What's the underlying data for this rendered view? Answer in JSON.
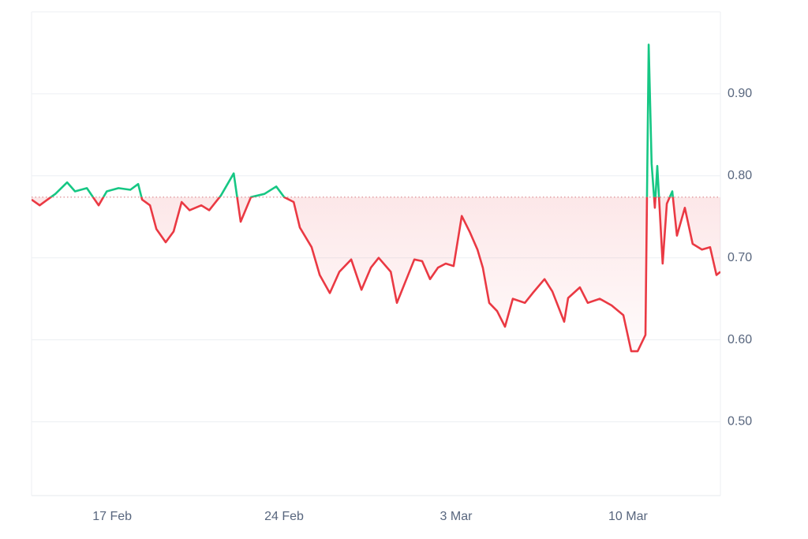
{
  "chart_data": {
    "type": "line",
    "x": [
      -3.28,
      -2.95,
      -2.63,
      -2.31,
      -1.83,
      -1.51,
      -1.03,
      -0.55,
      -0.22,
      0.26,
      0.74,
      1.06,
      1.22,
      1.54,
      1.8,
      2.18,
      2.5,
      2.83,
      3.15,
      3.63,
      3.95,
      4.43,
      4.95,
      5.23,
      5.65,
      6.2,
      6.68,
      7.0,
      7.39,
      7.64,
      8.12,
      8.45,
      8.86,
      9.25,
      9.73,
      10.15,
      10.53,
      10.85,
      11.34,
      11.59,
      11.98,
      12.3,
      12.62,
      12.94,
      13.26,
      13.58,
      13.9,
      14.23,
      14.55,
      14.87,
      15.09,
      15.35,
      15.67,
      15.99,
      16.31,
      16.8,
      17.12,
      17.6,
      17.92,
      18.4,
      18.56,
      19.04,
      19.36,
      19.85,
      20.33,
      20.81,
      21.13,
      21.39,
      21.71,
      21.84,
      21.96,
      22.09,
      22.19,
      22.41,
      22.58,
      22.8,
      22.99,
      23.31,
      23.63,
      24.01,
      24.34,
      24.6,
      24.76
    ],
    "values": [
      0.771,
      0.764,
      0.771,
      0.778,
      0.792,
      0.781,
      0.785,
      0.764,
      0.781,
      0.785,
      0.783,
      0.79,
      0.771,
      0.764,
      0.735,
      0.719,
      0.732,
      0.768,
      0.758,
      0.764,
      0.758,
      0.776,
      0.803,
      0.744,
      0.774,
      0.778,
      0.787,
      0.774,
      0.768,
      0.737,
      0.713,
      0.679,
      0.657,
      0.683,
      0.698,
      0.661,
      0.688,
      0.7,
      0.683,
      0.645,
      0.674,
      0.698,
      0.696,
      0.674,
      0.688,
      0.693,
      0.69,
      0.751,
      0.732,
      0.71,
      0.688,
      0.645,
      0.635,
      0.616,
      0.65,
      0.645,
      0.657,
      0.674,
      0.659,
      0.622,
      0.651,
      0.664,
      0.645,
      0.65,
      0.642,
      0.63,
      0.586,
      0.586,
      0.606,
      0.96,
      0.815,
      0.761,
      0.812,
      0.693,
      0.766,
      0.781,
      0.727,
      0.761,
      0.717,
      0.71,
      0.713,
      0.679,
      0.683
    ],
    "baseline": 0.774,
    "up_color": "#16c784",
    "down_color": "#ea3943",
    "xlim": [
      -3.28,
      24.76
    ],
    "xticks": [
      {
        "value": 0,
        "label": "17 Feb"
      },
      {
        "value": 7,
        "label": "24 Feb"
      },
      {
        "value": 14,
        "label": "3 Mar"
      },
      {
        "value": 21,
        "label": "10 Mar"
      }
    ],
    "ylim": [
      0.41,
      1.0
    ],
    "yticks": [
      {
        "value": 0.5,
        "label": "0.50"
      },
      {
        "value": 0.6,
        "label": "0.60"
      },
      {
        "value": 0.7,
        "label": "0.70"
      },
      {
        "value": 0.8,
        "label": "0.80"
      },
      {
        "value": 0.9,
        "label": "0.90"
      }
    ],
    "grid": true
  }
}
